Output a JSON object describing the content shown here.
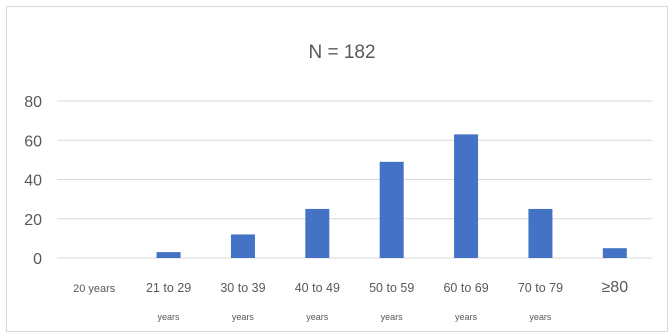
{
  "chart_data": {
    "type": "bar",
    "title": "N = 182",
    "xlabel": "",
    "ylabel": "",
    "ylim": [
      0,
      80
    ],
    "yticks": [
      "0",
      "20",
      "40",
      "60",
      "80"
    ],
    "categories": [
      {
        "line1": "20 years",
        "line2": ""
      },
      {
        "line1": "21 to 29",
        "line2": "years"
      },
      {
        "line1": "30 to 39",
        "line2": "years"
      },
      {
        "line1": "40 to 49",
        "line2": "years"
      },
      {
        "line1": "50 to 59",
        "line2": "years"
      },
      {
        "line1": "60 to 69",
        "line2": "years"
      },
      {
        "line1": "70 to 79",
        "line2": "years"
      },
      {
        "line1": "≥80",
        "line2": ""
      }
    ],
    "values": [
      0,
      3,
      12,
      25,
      49,
      63,
      25,
      5
    ],
    "grid": true,
    "legend": "none",
    "bar_color": "#4472c4",
    "grid_color": "#d9d9d9"
  }
}
